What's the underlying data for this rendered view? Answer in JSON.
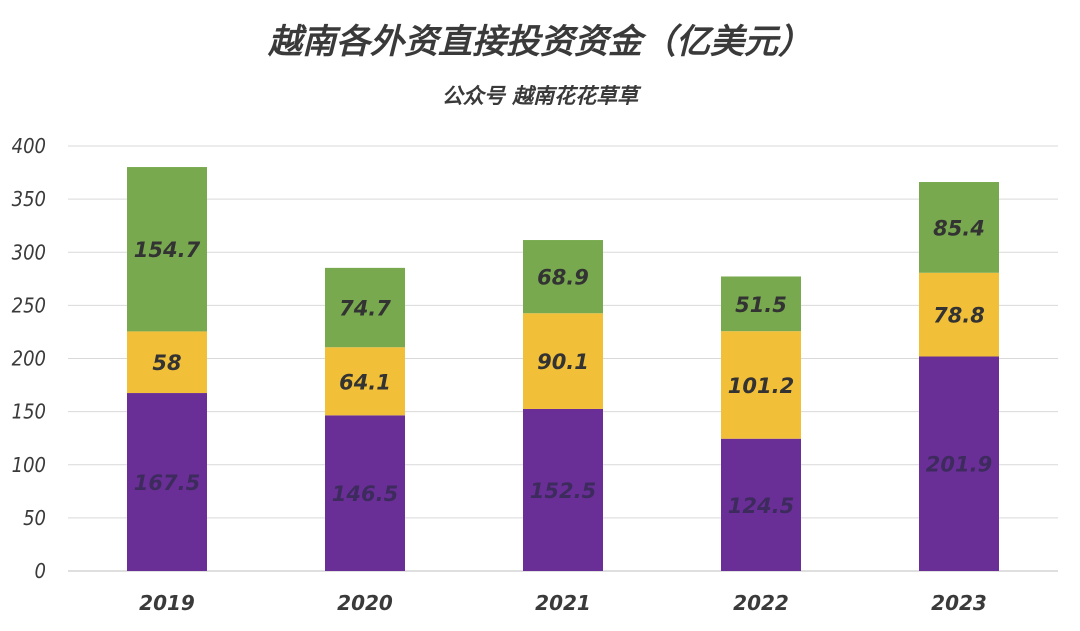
{
  "chart_data": {
    "type": "bar",
    "stacked": true,
    "title": "越南各外资直接投资资金（亿美元）",
    "subtitle": "公众号 越南花花草草",
    "categories": [
      "2019",
      "2020",
      "2021",
      "2022",
      "2023"
    ],
    "series": [
      {
        "name": "bottom",
        "color": "#6a2f97",
        "values": [
          167.5,
          146.5,
          152.5,
          124.5,
          201.9
        ],
        "labels": [
          "167.5",
          "146.5",
          "152.5",
          "124.5",
          "201.9"
        ]
      },
      {
        "name": "middle",
        "color": "#f2c038",
        "values": [
          58,
          64.1,
          90.1,
          101.2,
          78.8
        ],
        "labels": [
          "58",
          "64.1",
          "90.1",
          "101.2",
          "78.8"
        ]
      },
      {
        "name": "top",
        "color": "#78a94f",
        "values": [
          154.7,
          74.7,
          68.9,
          51.5,
          85.4
        ],
        "labels": [
          "154.7",
          "74.7",
          "68.9",
          "51.5",
          "85.4"
        ]
      }
    ],
    "ylim": [
      0,
      400
    ],
    "yticks": [
      "0",
      "50",
      "100",
      "150",
      "200",
      "250",
      "300",
      "350",
      "400"
    ],
    "grid": true,
    "legend": "none"
  }
}
